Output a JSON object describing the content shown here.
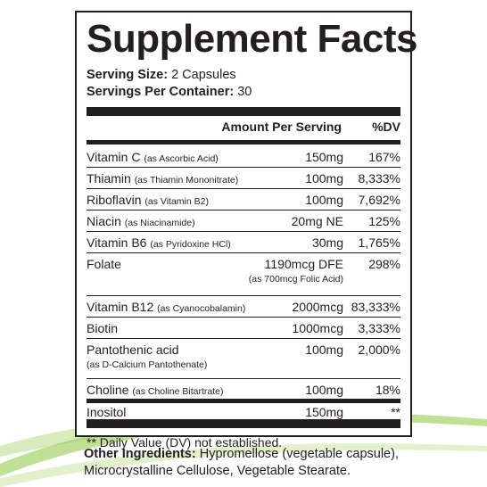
{
  "colors": {
    "ink": "#231f20",
    "swoosh": "#8dc63f"
  },
  "title": "Supplement Facts",
  "serving": {
    "size_label": "Serving Size:",
    "size_value": "2 Capsules",
    "per_container_label": "Servings Per Container:",
    "per_container_value": "30"
  },
  "header": {
    "amount": "Amount Per Serving",
    "dv": "%DV"
  },
  "nutrients": [
    {
      "name": "Vitamin C",
      "note": "(as Ascorbic Acid)",
      "amount": "150mg",
      "dv": "167%"
    },
    {
      "name": "Thiamin",
      "note": "(as Thiamin Mononitrate)",
      "amount": "100mg",
      "dv": "8,333%"
    },
    {
      "name": "Riboflavin",
      "note": "(as Vitamin B2)",
      "amount": "100mg",
      "dv": "7,692%"
    },
    {
      "name": "Niacin",
      "note": "(as Niacinamide)",
      "amount": "20mg NE",
      "dv": "125%"
    },
    {
      "name": "Vitamin B6",
      "note": "(as Pyridoxine HCl)",
      "amount": "30mg",
      "dv": "1,765%"
    },
    {
      "name": "Folate",
      "note": "",
      "amount": "1190mcg DFE",
      "amount_note": "(as 700mcg Folic Acid)",
      "dv": "298%"
    },
    {
      "name": "Vitamin B12",
      "note": "(as Cyanocobalamin)",
      "amount": "2000mcg",
      "dv": "83,333%"
    },
    {
      "name": "Biotin",
      "note": "",
      "amount": "1000mcg",
      "dv": "3,333%"
    },
    {
      "name": "Pantothenic acid",
      "note": "",
      "name_note": "(as D-Calcium Pantothenate)",
      "amount": "100mg",
      "dv": "2,000%"
    },
    {
      "name": "Choline",
      "note": "(as Choline Bitartrate)",
      "amount": "100mg",
      "dv": "18%"
    },
    {
      "name": "Inositol",
      "note": "",
      "amount": "150mg",
      "dv": "**"
    }
  ],
  "footnote": "** Daily Value (DV) not established.",
  "other_ingredients": {
    "label": "Other Ingredients:",
    "text": "Hypromellose (vegetable capsule), Microcrystalline Cellulose, Vegetable Stearate."
  }
}
